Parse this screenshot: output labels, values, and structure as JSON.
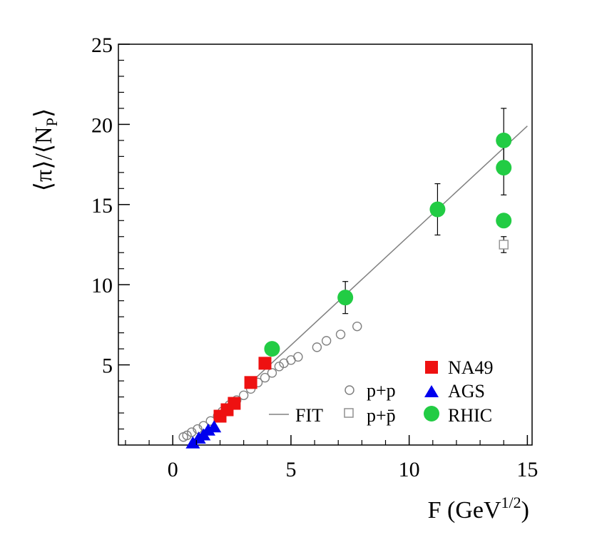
{
  "chart_data": {
    "type": "scatter",
    "title": "",
    "xlabel": "F (GeV",
    "xlabel_sup": "1/2",
    "xlabel_end": ")",
    "ylabel": "⟨π⟩/⟨N",
    "ylabel_sub": "P",
    "ylabel_end": "⟩",
    "xlim": [
      -2.3,
      15.2
    ],
    "ylim": [
      0,
      25
    ],
    "xticks": [
      0,
      5,
      10,
      15
    ],
    "yticks": [
      5,
      10,
      15,
      20,
      25
    ],
    "xtick_labels": [
      "0",
      "5",
      "10",
      "15"
    ],
    "ytick_labels": [
      "5",
      "10",
      "15",
      "20",
      "25"
    ],
    "fit_line": {
      "name": "FIT",
      "x": [
        3.3,
        15.0
      ],
      "y": [
        3.9,
        19.9
      ],
      "color": "#808080"
    },
    "series": [
      {
        "name": "p+p",
        "marker": "circle-open",
        "color": "#808080",
        "x": [
          0.45,
          0.6,
          0.8,
          1.05,
          1.3,
          1.6,
          1.9,
          2.1,
          2.4,
          2.7,
          3.0,
          3.3,
          3.6,
          3.9,
          4.2,
          4.5,
          4.7,
          5.0,
          5.3,
          6.1,
          6.5,
          7.1,
          7.8
        ],
        "y": [
          0.5,
          0.6,
          0.8,
          1.0,
          1.2,
          1.5,
          1.8,
          2.1,
          2.5,
          2.8,
          3.1,
          3.5,
          3.9,
          4.2,
          4.5,
          4.9,
          5.1,
          5.3,
          5.5,
          6.1,
          6.5,
          6.9,
          7.4
        ],
        "err": []
      },
      {
        "name": "p+p̄",
        "marker": "square-open",
        "color": "#909090",
        "x": [
          14.0
        ],
        "y": [
          12.5
        ],
        "err": [
          0.5
        ]
      },
      {
        "name": "NA49",
        "marker": "square-filled",
        "color": "#ee1111",
        "x": [
          2.0,
          2.3,
          2.6,
          3.3,
          3.9
        ],
        "y": [
          1.8,
          2.2,
          2.6,
          3.9,
          5.1
        ],
        "err": []
      },
      {
        "name": "AGS",
        "marker": "triangle-filled",
        "color": "#0000ee",
        "x": [
          0.85,
          1.1,
          1.3,
          1.5,
          1.75
        ],
        "y": [
          0.1,
          0.4,
          0.6,
          0.9,
          1.1
        ],
        "err": []
      },
      {
        "name": "RHIC",
        "marker": "circle-filled",
        "color": "#22cc44",
        "x": [
          4.2,
          7.3,
          11.2,
          14.0,
          14.0,
          14.0
        ],
        "y": [
          6.0,
          9.2,
          14.7,
          19.0,
          17.3,
          14.0
        ],
        "err": [
          0,
          1.0,
          1.6,
          2.0,
          1.7,
          0
        ]
      }
    ],
    "legend": {
      "placement": "bottom-right",
      "left_entries": [
        "p+p",
        "p+p̄"
      ],
      "fit_entry": "FIT",
      "right_entries": [
        "NA49",
        "AGS",
        "RHIC"
      ]
    }
  }
}
